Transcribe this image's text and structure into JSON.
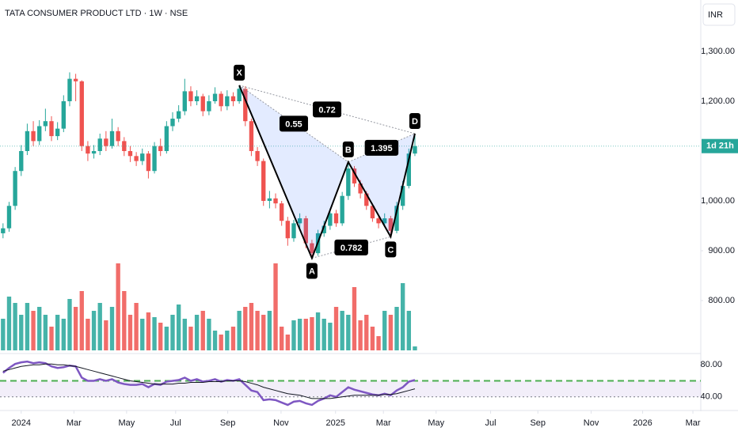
{
  "chart_data": {
    "type": "candlestick",
    "title": "TATA CONSUMER PRODUCT LTD · 1W · NSE",
    "currency": "INR",
    "countdown": "1d 21h",
    "up_color": "#26a69a",
    "down_color": "#ef5350",
    "xlim": [
      -0.5,
      115.2
    ],
    "xticks": [
      {
        "value": 3.0,
        "label": "2024"
      },
      {
        "value": 11.7,
        "label": "Mar"
      },
      {
        "value": 20.4,
        "label": "May"
      },
      {
        "value": 28.5,
        "label": "Jul"
      },
      {
        "value": 37.1,
        "label": "Sep"
      },
      {
        "value": 45.9,
        "label": "Nov"
      },
      {
        "value": 54.9,
        "label": "2025"
      },
      {
        "value": 62.8,
        "label": "Mar"
      },
      {
        "value": 71.5,
        "label": "May"
      },
      {
        "value": 80.5,
        "label": "Jul"
      },
      {
        "value": 88.3,
        "label": "Sep"
      },
      {
        "value": 97.1,
        "label": "Nov"
      },
      {
        "value": 105.6,
        "label": "2026"
      },
      {
        "value": 113.9,
        "label": "Mar"
      }
    ],
    "ylim": [
      700,
      1400
    ],
    "yticks": [
      {
        "value": 800,
        "label": "800.00"
      },
      {
        "value": 900,
        "label": "900.00"
      },
      {
        "value": 1000,
        "label": "1,000.00"
      },
      {
        "value": 1200,
        "label": "1,200.00"
      },
      {
        "value": 1300,
        "label": "1,300.00"
      }
    ],
    "open": [
      935,
      945,
      990,
      1060,
      1100,
      1140,
      1120,
      1150,
      1160,
      1130,
      1145,
      1200,
      1245,
      1240,
      1110,
      1095,
      1100,
      1125,
      1110,
      1140,
      1120,
      1100,
      1090,
      1080,
      1095,
      1060,
      1110,
      1100,
      1150,
      1165,
      1180,
      1220,
      1200,
      1210,
      1180,
      1200,
      1215,
      1190,
      1210,
      1200,
      1225,
      1160,
      1100,
      1080,
      1000,
      1005,
      995,
      960,
      925,
      955,
      965,
      915,
      895,
      935,
      950,
      975,
      955,
      1010,
      1065,
      1035,
      1015,
      990,
      965,
      955,
      965,
      940,
      990,
      1030,
      1095
    ],
    "high": [
      955,
      998,
      1068,
      1112,
      1155,
      1160,
      1162,
      1185,
      1170,
      1158,
      1212,
      1258,
      1255,
      1242,
      1120,
      1112,
      1135,
      1140,
      1165,
      1148,
      1128,
      1110,
      1098,
      1105,
      1100,
      1118,
      1125,
      1160,
      1178,
      1192,
      1245,
      1230,
      1222,
      1215,
      1212,
      1228,
      1220,
      1222,
      1218,
      1232,
      1230,
      1165,
      1108,
      1085,
      1020,
      1015,
      1000,
      968,
      962,
      975,
      970,
      922,
      942,
      960,
      985,
      982,
      1018,
      1078,
      1070,
      1042,
      1020,
      995,
      972,
      975,
      970,
      998,
      1040,
      1105,
      1135
    ],
    "low": [
      925,
      938,
      982,
      1050,
      1092,
      1110,
      1112,
      1140,
      1120,
      1122,
      1138,
      1190,
      1200,
      1100,
      1080,
      1085,
      1092,
      1100,
      1105,
      1110,
      1090,
      1078,
      1070,
      1072,
      1045,
      1055,
      1090,
      1095,
      1140,
      1158,
      1172,
      1190,
      1192,
      1170,
      1172,
      1195,
      1180,
      1182,
      1190,
      1195,
      1150,
      1090,
      1070,
      990,
      985,
      985,
      950,
      910,
      918,
      945,
      905,
      885,
      890,
      928,
      942,
      948,
      950,
      1002,
      1028,
      1005,
      982,
      958,
      945,
      948,
      928,
      935,
      982,
      1025,
      1090
    ],
    "close": [
      945,
      990,
      1060,
      1100,
      1140,
      1120,
      1150,
      1160,
      1130,
      1145,
      1200,
      1245,
      1240,
      1110,
      1095,
      1100,
      1125,
      1110,
      1140,
      1120,
      1100,
      1090,
      1080,
      1095,
      1060,
      1110,
      1100,
      1150,
      1165,
      1180,
      1220,
      1200,
      1210,
      1180,
      1200,
      1215,
      1190,
      1210,
      1200,
      1225,
      1160,
      1100,
      1080,
      1000,
      1005,
      995,
      960,
      925,
      955,
      965,
      915,
      895,
      935,
      950,
      975,
      955,
      1010,
      1065,
      1035,
      1015,
      990,
      965,
      955,
      965,
      940,
      990,
      1030,
      1095,
      1110
    ],
    "volume": {
      "vlim": [
        0,
        120
      ],
      "values": [
        40,
        68,
        60,
        45,
        60,
        50,
        55,
        45,
        30,
        45,
        40,
        65,
        55,
        75,
        40,
        50,
        60,
        38,
        55,
        110,
        75,
        45,
        60,
        40,
        48,
        42,
        35,
        30,
        45,
        58,
        40,
        30,
        45,
        50,
        40,
        25,
        20,
        25,
        30,
        50,
        55,
        60,
        50,
        45,
        50,
        110,
        30,
        20,
        38,
        40,
        40,
        42,
        48,
        40,
        35,
        55,
        50,
        45,
        80,
        38,
        45,
        30,
        18,
        50,
        45,
        55,
        85,
        50,
        5
      ]
    },
    "rsi": {
      "ylim": [
        27,
        94
      ],
      "yticks": [
        {
          "value": 80,
          "label": "80.00"
        },
        {
          "value": 40,
          "label": "40.00"
        }
      ],
      "band": [
        40,
        60
      ],
      "level": 60,
      "color": "#7e57c2",
      "ma_color": "#131722",
      "values": [
        70,
        76,
        81,
        83,
        84,
        82,
        83,
        82,
        78,
        76,
        77,
        79,
        78,
        64,
        60,
        60,
        62,
        60,
        62,
        58,
        56,
        55,
        55,
        56,
        52,
        56,
        55,
        59,
        60,
        61,
        64,
        60,
        62,
        59,
        60,
        62,
        59,
        61,
        60,
        62,
        55,
        48,
        46,
        36,
        37,
        36,
        33,
        30,
        34,
        35,
        32,
        30,
        35,
        38,
        42,
        40,
        46,
        52,
        49,
        47,
        45,
        43,
        42,
        44,
        42,
        48,
        52,
        59,
        61
      ],
      "ma": [
        72,
        74,
        76,
        78,
        79,
        80,
        80,
        81,
        81,
        80,
        80,
        79,
        78,
        76,
        74,
        72,
        70,
        68,
        66,
        64,
        62,
        60,
        59,
        58,
        57,
        56,
        56,
        56,
        56,
        57,
        57,
        58,
        58,
        58,
        59,
        59,
        59,
        60,
        60,
        60,
        59,
        57,
        55,
        52,
        50,
        48,
        46,
        44,
        43,
        42,
        40,
        38,
        38,
        38,
        38,
        39,
        40,
        41,
        42,
        42,
        42,
        42,
        42,
        43,
        43,
        44,
        46,
        48,
        50
      ]
    },
    "pattern": {
      "points": [
        {
          "label": "X",
          "x": 39,
          "y": 1232
        },
        {
          "label": "A",
          "x": 51,
          "y": 885
        },
        {
          "label": "B",
          "x": 57,
          "y": 1078
        },
        {
          "label": "C",
          "x": 64,
          "y": 928
        },
        {
          "label": "D",
          "x": 68,
          "y": 1135
        }
      ],
      "ratios": [
        0.55,
        0.72,
        0.782,
        1.395
      ]
    }
  }
}
